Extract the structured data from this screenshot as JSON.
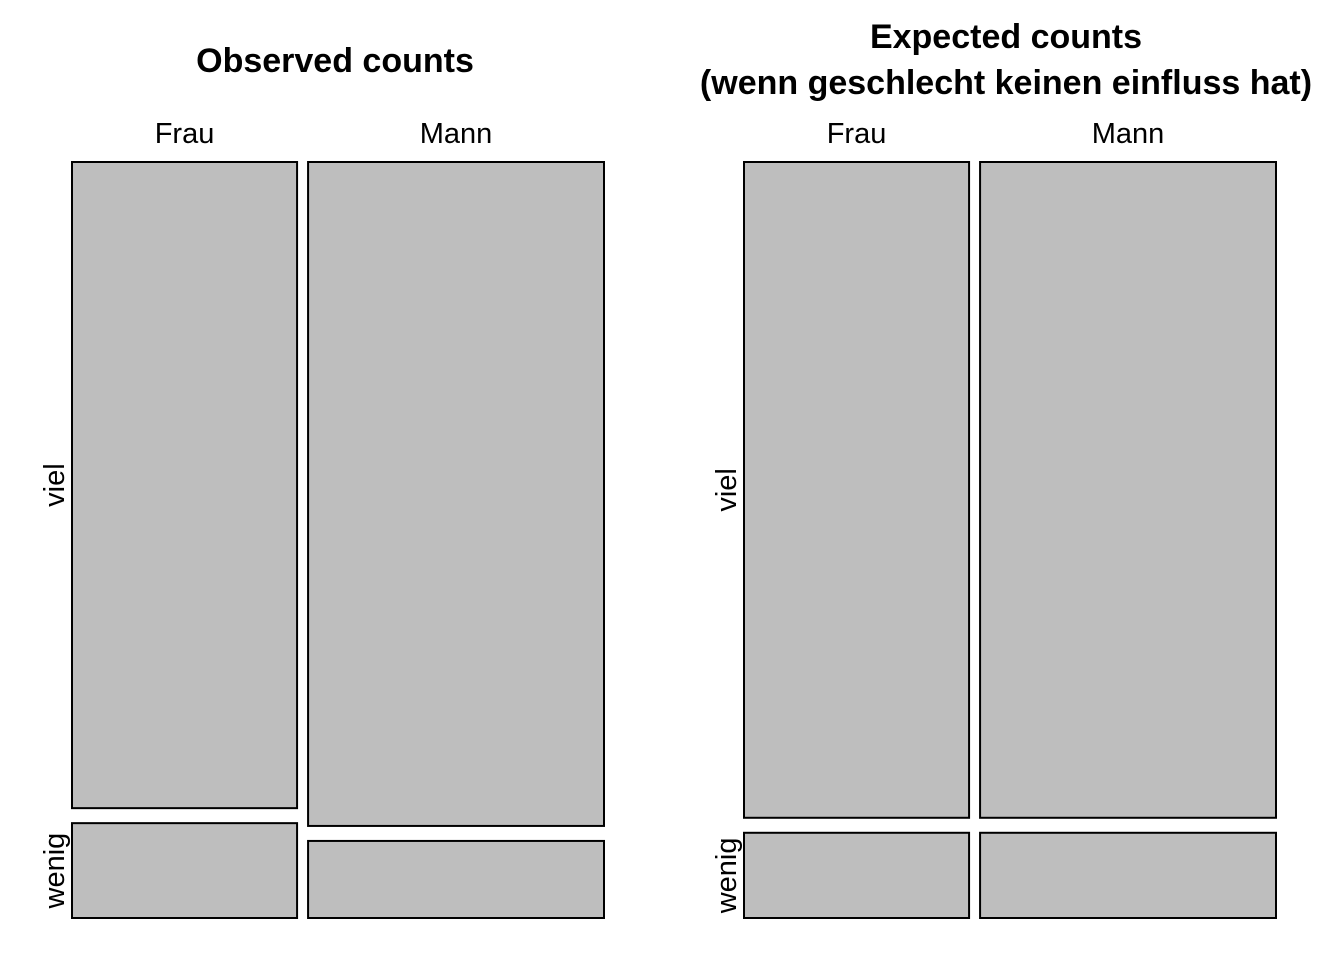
{
  "chart_data": [
    {
      "type": "mosaic",
      "title": "Observed counts",
      "columns": [
        "Frau",
        "Mann"
      ],
      "rows": [
        "viel",
        "wenig"
      ],
      "column_shares": [
        0.432,
        0.568
      ],
      "cells": [
        {
          "column": "Frau",
          "row": "viel",
          "share_within_column": 0.872
        },
        {
          "column": "Frau",
          "row": "wenig",
          "share_within_column": 0.128
        },
        {
          "column": "Mann",
          "row": "viel",
          "share_within_column": 0.896
        },
        {
          "column": "Mann",
          "row": "wenig",
          "share_within_column": 0.104
        }
      ],
      "fill": "#bebebe"
    },
    {
      "type": "mosaic",
      "title": "Expected counts",
      "subtitle": "(wenn geschlecht keinen einfluss hat)",
      "columns": [
        "Frau",
        "Mann"
      ],
      "rows": [
        "viel",
        "wenig"
      ],
      "column_shares": [
        0.432,
        0.568
      ],
      "cells": [
        {
          "column": "Frau",
          "row": "viel",
          "share_within_column": 0.885
        },
        {
          "column": "Frau",
          "row": "wenig",
          "share_within_column": 0.115
        },
        {
          "column": "Mann",
          "row": "viel",
          "share_within_column": 0.885
        },
        {
          "column": "Mann",
          "row": "wenig",
          "share_within_column": 0.115
        }
      ],
      "fill": "#bebebe"
    }
  ]
}
